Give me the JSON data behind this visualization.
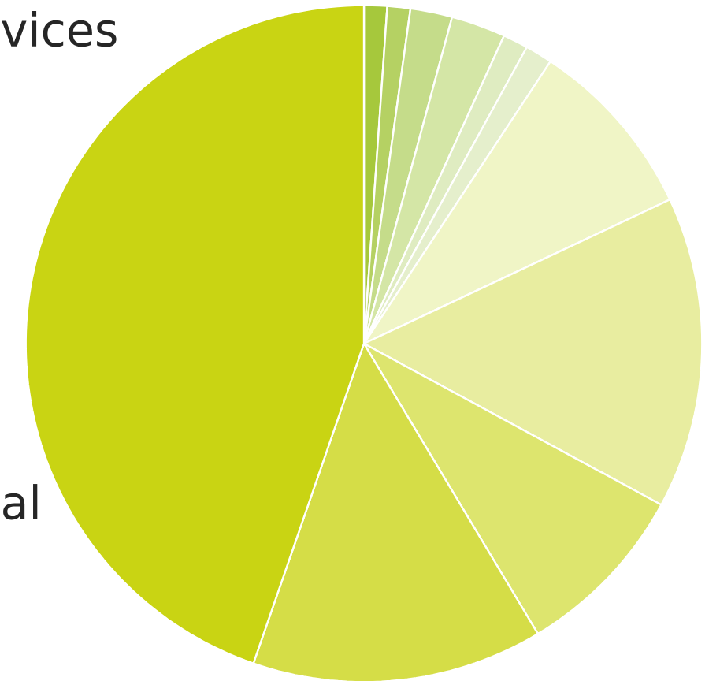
{
  "chart_data": {
    "type": "pie",
    "categories": [
      null,
      null,
      null,
      null,
      null,
      null,
      null,
      null,
      null,
      null,
      null
    ],
    "values": [
      1.1,
      1.1,
      2.0,
      2.6,
      1.2,
      1.3,
      8.7,
      14.9,
      8.5,
      13.9,
      44.7
    ],
    "colors": [
      "#a6c83c",
      "#b5d163",
      "#c5dc8a",
      "#d4e6a6",
      "#dfecc1",
      "#e5efcc",
      "#f0f5c6",
      "#e8eda0",
      "#dde56e",
      "#d5dd47",
      "#c9d413"
    ],
    "annotations": [
      "vices",
      "al"
    ]
  }
}
